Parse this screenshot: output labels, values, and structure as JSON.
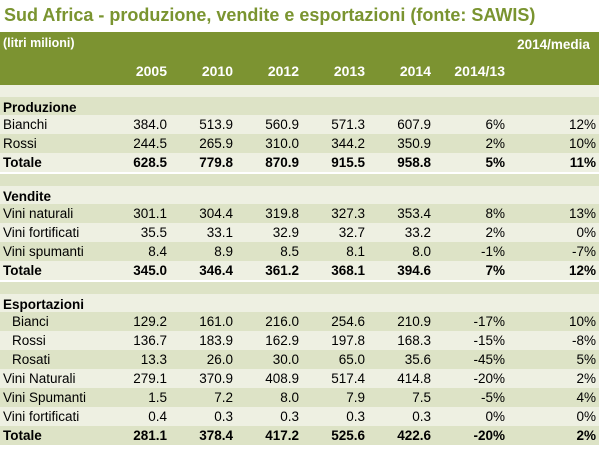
{
  "title": "Sud Africa - produzione, vendite e esportazioni (fonte: SAWIS)",
  "header": {
    "label": "(litri milioni)",
    "columns": [
      "2005",
      "2010",
      "2012",
      "2013",
      "2014",
      "2014/13",
      "2014/media"
    ]
  },
  "sections": [
    {
      "name": "Produzione",
      "rows": [
        {
          "label": "Bianchi",
          "values": [
            "384.0",
            "513.9",
            "560.9",
            "571.3",
            "607.9",
            "6%",
            "12%"
          ]
        },
        {
          "label": "Rossi",
          "values": [
            "244.5",
            "265.9",
            "310.0",
            "344.2",
            "350.9",
            "2%",
            "10%"
          ]
        },
        {
          "label": "Totale",
          "values": [
            "628.5",
            "779.8",
            "870.9",
            "915.5",
            "958.8",
            "5%",
            "11%"
          ]
        }
      ]
    },
    {
      "name": "Vendite",
      "rows": [
        {
          "label": "Vini naturali",
          "values": [
            "301.1",
            "304.4",
            "319.8",
            "327.3",
            "353.4",
            "8%",
            "13%"
          ]
        },
        {
          "label": "Vini fortificati",
          "values": [
            "35.5",
            "33.1",
            "32.9",
            "32.7",
            "33.2",
            "2%",
            "0%"
          ]
        },
        {
          "label": "Vini spumanti",
          "values": [
            "8.4",
            "8.9",
            "8.5",
            "8.1",
            "8.0",
            "-1%",
            "-7%"
          ]
        },
        {
          "label": "Totale",
          "values": [
            "345.0",
            "346.4",
            "361.2",
            "368.1",
            "394.6",
            "7%",
            "12%"
          ]
        }
      ]
    },
    {
      "name": "Esportazioni",
      "rows": [
        {
          "label": "Bianci",
          "values": [
            "129.2",
            "161.0",
            "216.0",
            "254.6",
            "210.9",
            "-17%",
            "10%"
          ]
        },
        {
          "label": "Rossi",
          "values": [
            "136.7",
            "183.9",
            "162.9",
            "197.8",
            "168.3",
            "-15%",
            "-8%"
          ]
        },
        {
          "label": "Rosati",
          "values": [
            "13.3",
            "26.0",
            "30.0",
            "65.0",
            "35.6",
            "-45%",
            "5%"
          ]
        },
        {
          "label": "Vini Naturali",
          "values": [
            "279.1",
            "370.9",
            "408.9",
            "517.4",
            "414.8",
            "-20%",
            "2%"
          ]
        },
        {
          "label": "Vini Spumanti",
          "values": [
            "1.5",
            "7.2",
            "8.0",
            "7.9",
            "7.5",
            "-5%",
            "4%"
          ]
        },
        {
          "label": "Vini fortificati",
          "values": [
            "0.4",
            "0.3",
            "0.3",
            "0.3",
            "0.3",
            "0%",
            "0%"
          ]
        },
        {
          "label": "Totale",
          "values": [
            "281.1",
            "378.4",
            "417.2",
            "525.6",
            "422.6",
            "-20%",
            "2%"
          ]
        }
      ]
    }
  ]
}
